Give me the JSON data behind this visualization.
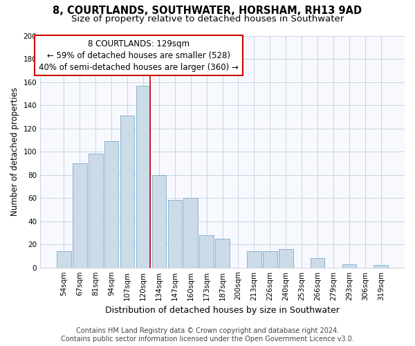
{
  "title": "8, COURTLANDS, SOUTHWATER, HORSHAM, RH13 9AD",
  "subtitle": "Size of property relative to detached houses in Southwater",
  "xlabel": "Distribution of detached houses by size in Southwater",
  "ylabel": "Number of detached properties",
  "categories": [
    "54sqm",
    "67sqm",
    "81sqm",
    "94sqm",
    "107sqm",
    "120sqm",
    "134sqm",
    "147sqm",
    "160sqm",
    "173sqm",
    "187sqm",
    "200sqm",
    "213sqm",
    "226sqm",
    "240sqm",
    "253sqm",
    "266sqm",
    "279sqm",
    "293sqm",
    "306sqm",
    "319sqm"
  ],
  "values": [
    14,
    90,
    98,
    109,
    131,
    157,
    80,
    58,
    60,
    28,
    25,
    0,
    14,
    14,
    16,
    0,
    8,
    0,
    3,
    0,
    2
  ],
  "bar_color": "#ccdbe8",
  "bar_edgecolor": "#7aaac8",
  "highlight_line_color": "#cc0000",
  "highlight_line_index": 5,
  "ylim": [
    0,
    200
  ],
  "yticks": [
    0,
    20,
    40,
    60,
    80,
    100,
    120,
    140,
    160,
    180,
    200
  ],
  "annotation_line1": "8 COURTLANDS: 129sqm",
  "annotation_line2": "← 59% of detached houses are smaller (528)",
  "annotation_line3": "40% of semi-detached houses are larger (360) →",
  "annotation_box_color": "#ffffff",
  "annotation_box_edgecolor": "#cc0000",
  "footer_line1": "Contains HM Land Registry data © Crown copyright and database right 2024.",
  "footer_line2": "Contains public sector information licensed under the Open Government Licence v3.0.",
  "title_fontsize": 10.5,
  "subtitle_fontsize": 9.5,
  "xlabel_fontsize": 9,
  "ylabel_fontsize": 8.5,
  "tick_fontsize": 7.5,
  "annotation_fontsize": 8.5,
  "footer_fontsize": 7
}
